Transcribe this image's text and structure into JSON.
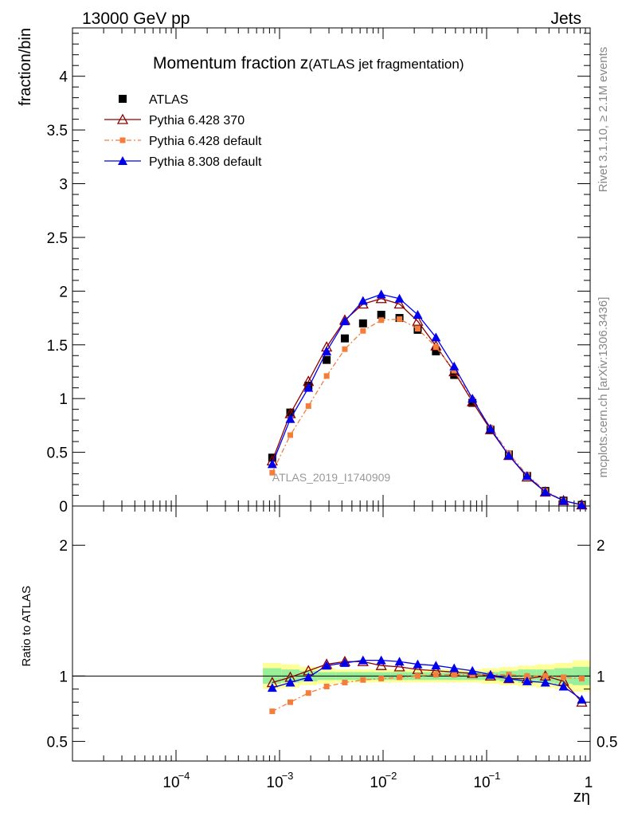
{
  "header": {
    "left": "13000 GeV pp",
    "right": "Jets"
  },
  "side": {
    "top": "Rivet 3.1.10, ≥ 2.1M events",
    "bottom": "mcplots.cern.ch [arXiv:1306.3436]"
  },
  "chart_data": {
    "type": "line",
    "title": "Momentum fraction",
    "title_symbol": "z",
    "title_suffix": "(ATLAS jet fragmentation)",
    "watermark": "ATLAS_2019_I1740909",
    "xlabel": "zη",
    "ylabel": "fraction/bin",
    "ratio_ylabel": "Ratio to ATLAS",
    "x_scale": "log",
    "xlim": [
      1e-05,
      1
    ],
    "ylim": [
      0,
      4.45
    ],
    "ratio_ylim": [
      0.35,
      2.3
    ],
    "x_tick_labels": [
      "10",
      "10",
      "10",
      "10",
      "1"
    ],
    "x_tick_exponents": [
      "−4",
      "−3",
      "−2",
      "−1",
      ""
    ],
    "y_tick_labels": [
      "0",
      "0.5",
      "1",
      "1.5",
      "2",
      "2.5",
      "3",
      "3.5",
      "4"
    ],
    "ratio_tick_labels": [
      "0.5",
      "1",
      "2"
    ],
    "legend_position": "top-left",
    "x": [
      0.00085,
      0.00127,
      0.0019,
      0.00285,
      0.00427,
      0.0064,
      0.0096,
      0.0144,
      0.0216,
      0.0324,
      0.0486,
      0.0729,
      0.109,
      0.164,
      0.246,
      0.369,
      0.553,
      0.83
    ],
    "series": [
      {
        "name": "ATLAS",
        "color": "#000000",
        "marker": "square",
        "values": [
          0.45,
          0.87,
          1.12,
          1.36,
          1.56,
          1.7,
          1.78,
          1.75,
          1.64,
          1.44,
          1.22,
          0.96,
          0.71,
          0.48,
          0.28,
          0.14,
          0.05,
          0.01
        ]
      },
      {
        "name": "Pythia 6.428 370",
        "color": "#8b0000",
        "marker": "triangle-open",
        "dash": "",
        "values": [
          0.42,
          0.86,
          1.16,
          1.48,
          1.73,
          1.88,
          1.93,
          1.88,
          1.72,
          1.49,
          1.25,
          0.97,
          0.71,
          0.47,
          0.27,
          0.13,
          0.05,
          0.01
        ],
        "ratio": [
          0.95,
          0.99,
          1.04,
          1.09,
          1.11,
          1.11,
          1.08,
          1.07,
          1.05,
          1.04,
          1.03,
          1.02,
          1.0,
          0.98,
          0.98,
          1.0,
          0.96,
          0.8
        ]
      },
      {
        "name": "Pythia 6.428 default",
        "color": "#f47d3a",
        "marker": "square-small",
        "dash": "6,3,2,3",
        "values": [
          0.31,
          0.66,
          0.93,
          1.21,
          1.46,
          1.63,
          1.73,
          1.74,
          1.65,
          1.48,
          1.26,
          0.99,
          0.73,
          0.49,
          0.29,
          0.14,
          0.05,
          0.01
        ],
        "ratio": [
          0.73,
          0.8,
          0.87,
          0.92,
          0.95,
          0.97,
          0.98,
          0.99,
          1.0,
          1.01,
          1.01,
          1.01,
          1.01,
          1.01,
          1.0,
          1.0,
          0.99,
          0.98
        ]
      },
      {
        "name": "Pythia 8.308 default",
        "color": "#0000ee",
        "marker": "triangle",
        "dash": "",
        "values": [
          0.39,
          0.81,
          1.1,
          1.44,
          1.72,
          1.91,
          1.97,
          1.93,
          1.78,
          1.57,
          1.3,
          1.0,
          0.72,
          0.47,
          0.28,
          0.13,
          0.05,
          0.01
        ],
        "ratio": [
          0.91,
          0.95,
          0.99,
          1.08,
          1.1,
          1.12,
          1.12,
          1.11,
          1.09,
          1.08,
          1.06,
          1.04,
          1.01,
          0.98,
          0.96,
          0.95,
          0.92,
          0.82
        ]
      }
    ],
    "uncertainty_bands": {
      "x_edges": [
        0.00069,
        0.00104,
        0.00156,
        0.00233,
        0.0035,
        0.00525,
        0.00787,
        0.0118,
        0.0177,
        0.0265,
        0.0398,
        0.0597,
        0.0895,
        0.134,
        0.201,
        0.302,
        0.452,
        0.678,
        1.0
      ],
      "stat_syst_color": "#ffff99",
      "stat_color": "#99ee99",
      "outer": [
        0.1,
        0.09,
        0.07,
        0.06,
        0.05,
        0.05,
        0.05,
        0.05,
        0.05,
        0.05,
        0.05,
        0.05,
        0.06,
        0.07,
        0.08,
        0.09,
        0.1,
        0.12
      ],
      "inner": [
        0.06,
        0.05,
        0.04,
        0.03,
        0.03,
        0.03,
        0.03,
        0.03,
        0.03,
        0.03,
        0.03,
        0.03,
        0.03,
        0.04,
        0.05,
        0.05,
        0.06,
        0.07
      ]
    }
  }
}
